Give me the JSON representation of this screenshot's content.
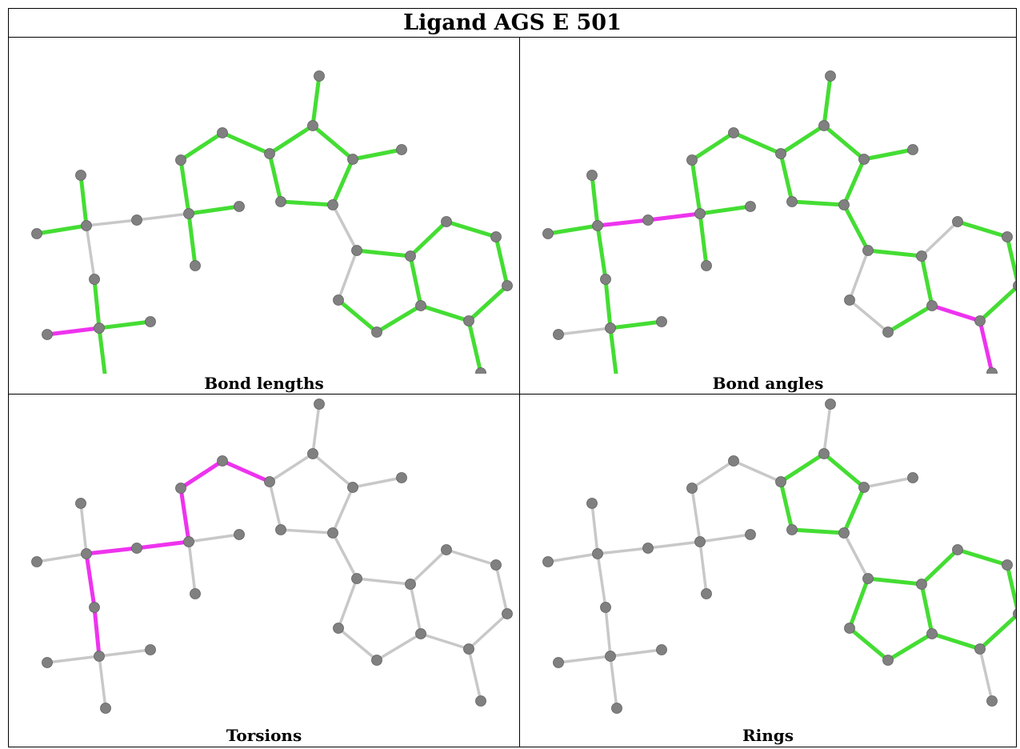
{
  "title": "Ligand AGS E 501",
  "colors": {
    "ok": "#44dd33",
    "outlier": "#ee33ee",
    "neutral": "#c8c8c8",
    "atom": "#808080"
  },
  "panels": [
    {
      "caption": "Bond lengths"
    },
    {
      "caption": "Bond angles"
    },
    {
      "caption": "Torsions"
    },
    {
      "caption": "Rings"
    }
  ]
}
